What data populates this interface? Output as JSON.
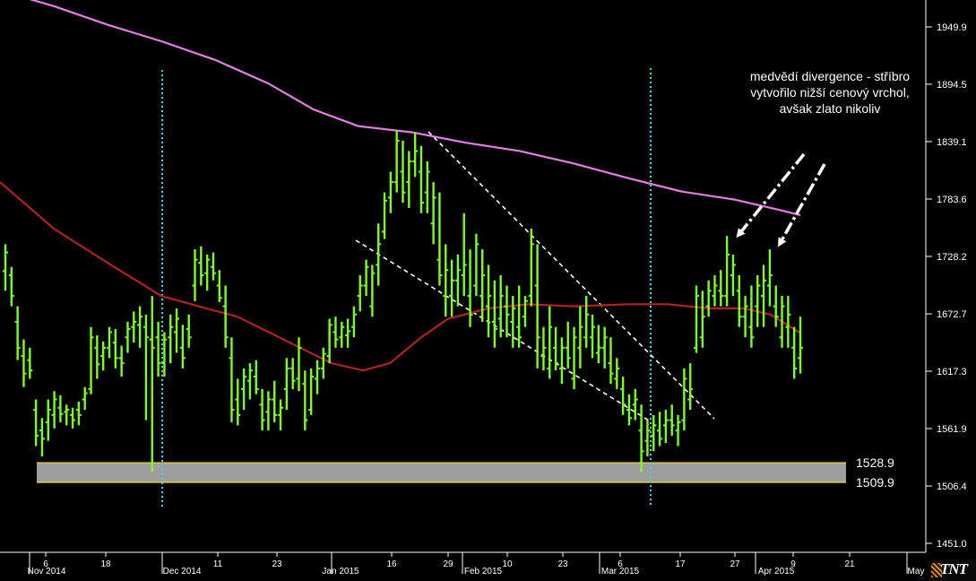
{
  "chart_data": {
    "type": "bar",
    "subtype": "ohlc",
    "ylim": [
      1440,
      1990
    ],
    "y_ticks": [
      1949.9,
      1894.5,
      1839.1,
      1783.6,
      1728.2,
      1672.7,
      1617.3,
      1561.9,
      1506.4,
      1451.0
    ],
    "x_tick_labels": [
      "Nov 2014",
      "6",
      "18",
      "Dec 2014",
      "11",
      "23",
      "Jan 2015",
      "16",
      "29",
      "Feb 2015",
      "10",
      "23",
      "6",
      "Mar 2015",
      "17",
      "27",
      "Apr 2015",
      "9",
      "21",
      "May"
    ],
    "support_zone": {
      "upper": 1528.9,
      "lower": 1509.9,
      "upper_label": "1528.9",
      "lower_label": "1509.9"
    },
    "annotation": "medvědí divergence - stříbro vytvořilo nižší cenový vrchol, avšak zlato nikoliv",
    "colors": {
      "bars": "#7cff1e",
      "ma_short": "#b22222",
      "ma_long": "#e67de6",
      "support_zone": "#9e9e9e",
      "support_border": "#f0e030",
      "vertical_markers": "#38d8f0",
      "trendlines": "#ffffff",
      "axis_text": "#ffffff",
      "background": "#000000"
    },
    "series": [
      {
        "type": "ohlc",
        "values": [
          [
            1714,
            1740,
            1695,
            1732
          ],
          [
            1710,
            1718,
            1680,
            1690
          ],
          [
            1665,
            1680,
            1628,
            1640
          ],
          [
            1632,
            1648,
            1602,
            1615
          ],
          [
            1628,
            1640,
            1610,
            1618
          ],
          [
            1580,
            1590,
            1545,
            1555
          ],
          [
            1560,
            1572,
            1535,
            1552
          ],
          [
            1568,
            1590,
            1550,
            1580
          ],
          [
            1575,
            1598,
            1562,
            1590
          ],
          [
            1582,
            1594,
            1568,
            1576
          ],
          [
            1578,
            1585,
            1565,
            1580
          ],
          [
            1575,
            1582,
            1562,
            1570
          ],
          [
            1580,
            1588,
            1565,
            1575
          ],
          [
            1590,
            1602,
            1580,
            1596
          ],
          [
            1600,
            1660,
            1595,
            1650
          ],
          [
            1640,
            1652,
            1610,
            1624
          ],
          [
            1632,
            1646,
            1618,
            1640
          ],
          [
            1640,
            1660,
            1630,
            1655
          ],
          [
            1645,
            1658,
            1620,
            1630
          ],
          [
            1630,
            1642,
            1612,
            1625
          ],
          [
            1650,
            1665,
            1635,
            1658
          ],
          [
            1660,
            1675,
            1645,
            1665
          ],
          [
            1662,
            1680,
            1640,
            1670
          ],
          [
            1660,
            1672,
            1570,
            1650
          ],
          [
            1648,
            1690,
            1520,
            1640
          ],
          [
            1650,
            1665,
            1612,
            1625
          ],
          [
            1625,
            1655,
            1612,
            1648
          ],
          [
            1650,
            1672,
            1625,
            1660
          ],
          [
            1655,
            1678,
            1635,
            1668
          ],
          [
            1640,
            1662,
            1620,
            1630
          ],
          [
            1658,
            1672,
            1640,
            1650
          ],
          [
            1700,
            1735,
            1685,
            1725
          ],
          [
            1722,
            1738,
            1700,
            1710
          ],
          [
            1712,
            1730,
            1695,
            1725
          ],
          [
            1718,
            1732,
            1705,
            1712
          ],
          [
            1700,
            1715,
            1684,
            1688
          ],
          [
            1680,
            1700,
            1640,
            1650
          ],
          [
            1630,
            1650,
            1568,
            1580
          ],
          [
            1590,
            1610,
            1565,
            1575
          ],
          [
            1600,
            1620,
            1580,
            1612
          ],
          [
            1608,
            1625,
            1590,
            1618
          ],
          [
            1612,
            1628,
            1595,
            1600
          ],
          [
            1585,
            1600,
            1560,
            1570
          ],
          [
            1578,
            1598,
            1560,
            1590
          ],
          [
            1590,
            1608,
            1568,
            1575
          ],
          [
            1575,
            1590,
            1560,
            1582
          ],
          [
            1600,
            1630,
            1580,
            1620
          ],
          [
            1620,
            1630,
            1600,
            1608
          ],
          [
            1610,
            1650,
            1598,
            1640
          ],
          [
            1605,
            1618,
            1560,
            1570
          ],
          [
            1580,
            1620,
            1575,
            1612
          ],
          [
            1610,
            1628,
            1595,
            1620
          ],
          [
            1620,
            1640,
            1610,
            1634
          ],
          [
            1632,
            1668,
            1625,
            1662
          ],
          [
            1655,
            1670,
            1640,
            1648
          ],
          [
            1650,
            1665,
            1640,
            1660
          ],
          [
            1652,
            1668,
            1640,
            1656
          ],
          [
            1660,
            1680,
            1650,
            1672
          ],
          [
            1690,
            1710,
            1675,
            1700
          ],
          [
            1700,
            1725,
            1690,
            1718
          ],
          [
            1680,
            1720,
            1670,
            1712
          ],
          [
            1720,
            1760,
            1700,
            1740
          ],
          [
            1752,
            1790,
            1745,
            1782
          ],
          [
            1785,
            1810,
            1770,
            1800
          ],
          [
            1800,
            1850,
            1790,
            1840
          ],
          [
            1810,
            1840,
            1780,
            1790
          ],
          [
            1800,
            1830,
            1775,
            1820
          ],
          [
            1820,
            1848,
            1805,
            1830
          ],
          [
            1810,
            1835,
            1770,
            1780
          ],
          [
            1790,
            1820,
            1770,
            1810
          ],
          [
            1760,
            1800,
            1740,
            1785
          ],
          [
            1725,
            1790,
            1700,
            1710
          ],
          [
            1690,
            1740,
            1670,
            1715
          ],
          [
            1690,
            1725,
            1670,
            1705
          ],
          [
            1705,
            1730,
            1680,
            1715
          ],
          [
            1710,
            1770,
            1690,
            1720
          ],
          [
            1690,
            1735,
            1660,
            1672
          ],
          [
            1700,
            1750,
            1690,
            1740
          ],
          [
            1690,
            1735,
            1665,
            1710
          ],
          [
            1680,
            1720,
            1650,
            1690
          ],
          [
            1665,
            1705,
            1640,
            1658
          ],
          [
            1668,
            1710,
            1650,
            1690
          ],
          [
            1680,
            1700,
            1650,
            1672
          ],
          [
            1665,
            1690,
            1640,
            1678
          ],
          [
            1660,
            1700,
            1640,
            1650
          ],
          [
            1670,
            1690,
            1660,
            1685
          ],
          [
            1690,
            1755,
            1680,
            1740
          ],
          [
            1700,
            1740,
            1620,
            1650
          ],
          [
            1632,
            1660,
            1618,
            1640
          ],
          [
            1620,
            1680,
            1610,
            1660
          ],
          [
            1640,
            1660,
            1618,
            1625
          ],
          [
            1620,
            1650,
            1605,
            1640
          ],
          [
            1640,
            1665,
            1620,
            1630
          ],
          [
            1610,
            1660,
            1600,
            1650
          ],
          [
            1640,
            1680,
            1620,
            1660
          ],
          [
            1650,
            1690,
            1640,
            1672
          ],
          [
            1650,
            1672,
            1630,
            1660
          ],
          [
            1635,
            1662,
            1625,
            1640
          ],
          [
            1640,
            1660,
            1620,
            1650
          ],
          [
            1625,
            1650,
            1605,
            1615
          ],
          [
            1610,
            1630,
            1600,
            1620
          ],
          [
            1600,
            1612,
            1575,
            1585
          ],
          [
            1580,
            1595,
            1565,
            1572
          ],
          [
            1585,
            1600,
            1570,
            1590
          ],
          [
            1560,
            1585,
            1520,
            1540
          ],
          [
            1550,
            1570,
            1535,
            1560
          ],
          [
            1555,
            1575,
            1540,
            1565
          ],
          [
            1560,
            1578,
            1545,
            1552
          ],
          [
            1565,
            1580,
            1548,
            1570
          ],
          [
            1570,
            1585,
            1555,
            1565
          ],
          [
            1560,
            1575,
            1545,
            1568
          ],
          [
            1570,
            1620,
            1560,
            1610
          ],
          [
            1590,
            1625,
            1580,
            1600
          ],
          [
            1640,
            1700,
            1635,
            1690
          ],
          [
            1650,
            1695,
            1640,
            1670
          ],
          [
            1680,
            1705,
            1670,
            1695
          ],
          [
            1690,
            1710,
            1680,
            1700
          ],
          [
            1695,
            1715,
            1680,
            1690
          ],
          [
            1690,
            1748,
            1680,
            1730
          ],
          [
            1710,
            1730,
            1690,
            1720
          ],
          [
            1695,
            1710,
            1660,
            1670
          ],
          [
            1670,
            1690,
            1650,
            1680
          ],
          [
            1660,
            1700,
            1640,
            1650
          ],
          [
            1680,
            1710,
            1660,
            1700
          ],
          [
            1690,
            1720,
            1660,
            1705
          ],
          [
            1700,
            1735,
            1680,
            1710
          ],
          [
            1680,
            1700,
            1660,
            1670
          ],
          [
            1650,
            1690,
            1640,
            1680
          ],
          [
            1660,
            1690,
            1640,
            1672
          ],
          [
            1640,
            1660,
            1610,
            1620
          ],
          [
            1630,
            1670,
            1615,
            1640
          ]
        ]
      },
      {
        "type": "line",
        "role": "ma_short",
        "values": [
          [
            0,
            1800
          ],
          [
            60,
            1755
          ],
          [
            120,
            1722
          ],
          [
            180,
            1690
          ],
          [
            230,
            1678
          ],
          [
            265,
            1670
          ],
          [
            300,
            1655
          ],
          [
            335,
            1640
          ],
          [
            370,
            1625
          ],
          [
            405,
            1618
          ],
          [
            435,
            1625
          ],
          [
            470,
            1650
          ],
          [
            500,
            1668
          ],
          [
            545,
            1678
          ],
          [
            590,
            1682
          ],
          [
            640,
            1680
          ],
          [
            700,
            1682
          ],
          [
            745,
            1682
          ],
          [
            790,
            1678
          ],
          [
            830,
            1678
          ],
          [
            860,
            1672
          ],
          [
            893,
            1654
          ]
        ]
      },
      {
        "type": "line",
        "role": "ma_long",
        "values": [
          [
            0,
            1985
          ],
          [
            60,
            1970
          ],
          [
            120,
            1952
          ],
          [
            180,
            1936
          ],
          [
            240,
            1918
          ],
          [
            300,
            1895
          ],
          [
            350,
            1870
          ],
          [
            400,
            1854
          ],
          [
            460,
            1848
          ],
          [
            520,
            1838
          ],
          [
            580,
            1830
          ],
          [
            640,
            1818
          ],
          [
            700,
            1804
          ],
          [
            760,
            1791
          ],
          [
            820,
            1783
          ],
          [
            870,
            1773
          ],
          [
            893,
            1768
          ]
        ]
      }
    ]
  }
}
